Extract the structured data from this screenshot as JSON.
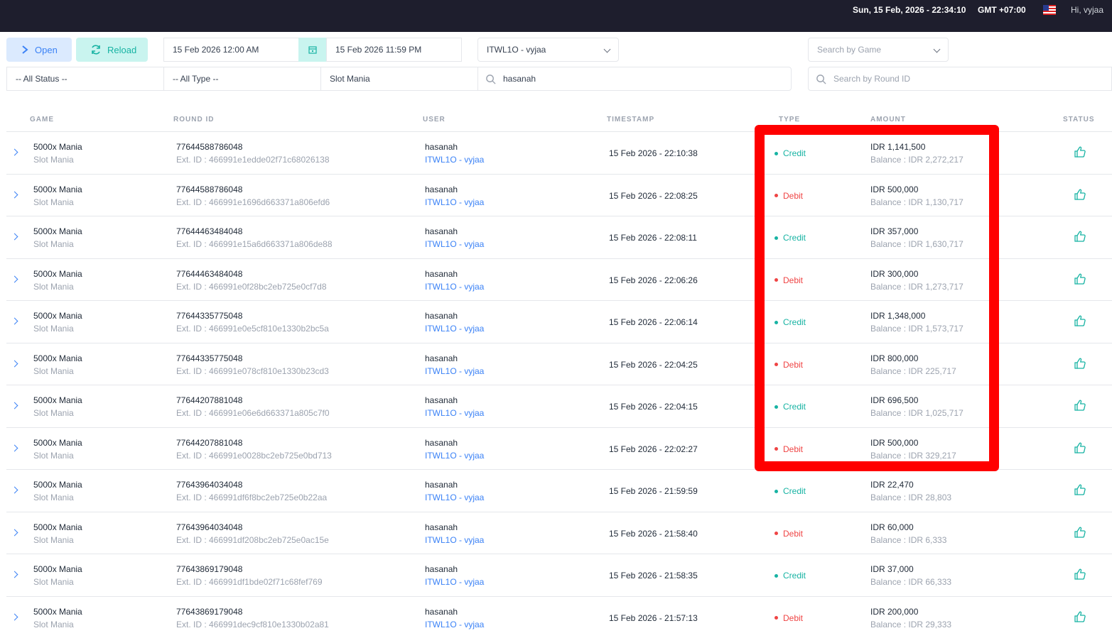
{
  "topbar": {
    "datetime": "Sun, 15 Feb, 2026 - 22:34:10",
    "timezone": "GMT +07:00",
    "greeting": "Hi, vyjaa"
  },
  "filters": {
    "open_label": "Open",
    "reload_label": "Reload",
    "date_from": "15 Feb 2026 12:00 AM",
    "date_to": "15 Feb 2026 11:59 PM",
    "agent": "ITWL1O - vyjaa",
    "game_placeholder": "Search by Game",
    "status": "-- All Status --",
    "type": "-- All Type --",
    "provider": "Slot Mania",
    "user_search": "hasanah",
    "round_placeholder": "Search by Round ID"
  },
  "table": {
    "headers": {
      "game": "GAME",
      "round_id": "ROUND ID",
      "user": "USER",
      "timestamp": "TIMESTAMP",
      "type": "TYPE",
      "amount": "AMOUNT",
      "status": "STATUS"
    },
    "rows": [
      {
        "game": "5000x Mania",
        "provider": "Slot Mania",
        "round_id": "77644588786048",
        "ext_id": "Ext. ID : 466991e1edde02f71c68026138",
        "user": "hasanah",
        "agent": "ITWL1O - vyjaa",
        "timestamp": "15 Feb 2026 - 22:10:38",
        "type": "Credit",
        "amount": "IDR 1,141,500",
        "balance": "Balance : IDR 2,272,217"
      },
      {
        "game": "5000x Mania",
        "provider": "Slot Mania",
        "round_id": "77644588786048",
        "ext_id": "Ext. ID : 466991e1696d663371a806efd6",
        "user": "hasanah",
        "agent": "ITWL1O - vyjaa",
        "timestamp": "15 Feb 2026 - 22:08:25",
        "type": "Debit",
        "amount": "IDR 500,000",
        "balance": "Balance : IDR 1,130,717"
      },
      {
        "game": "5000x Mania",
        "provider": "Slot Mania",
        "round_id": "77644463484048",
        "ext_id": "Ext. ID : 466991e15a6d663371a806de88",
        "user": "hasanah",
        "agent": "ITWL1O - vyjaa",
        "timestamp": "15 Feb 2026 - 22:08:11",
        "type": "Credit",
        "amount": "IDR 357,000",
        "balance": "Balance : IDR 1,630,717"
      },
      {
        "game": "5000x Mania",
        "provider": "Slot Mania",
        "round_id": "77644463484048",
        "ext_id": "Ext. ID : 466991e0f28bc2eb725e0cf7d8",
        "user": "hasanah",
        "agent": "ITWL1O - vyjaa",
        "timestamp": "15 Feb 2026 - 22:06:26",
        "type": "Debit",
        "amount": "IDR 300,000",
        "balance": "Balance : IDR 1,273,717"
      },
      {
        "game": "5000x Mania",
        "provider": "Slot Mania",
        "round_id": "77644335775048",
        "ext_id": "Ext. ID : 466991e0e5cf810e1330b2bc5a",
        "user": "hasanah",
        "agent": "ITWL1O - vyjaa",
        "timestamp": "15 Feb 2026 - 22:06:14",
        "type": "Credit",
        "amount": "IDR 1,348,000",
        "balance": "Balance : IDR 1,573,717"
      },
      {
        "game": "5000x Mania",
        "provider": "Slot Mania",
        "round_id": "77644335775048",
        "ext_id": "Ext. ID : 466991e078cf810e1330b23cd3",
        "user": "hasanah",
        "agent": "ITWL1O - vyjaa",
        "timestamp": "15 Feb 2026 - 22:04:25",
        "type": "Debit",
        "amount": "IDR 800,000",
        "balance": "Balance : IDR 225,717"
      },
      {
        "game": "5000x Mania",
        "provider": "Slot Mania",
        "round_id": "77644207881048",
        "ext_id": "Ext. ID : 466991e06e6d663371a805c7f0",
        "user": "hasanah",
        "agent": "ITWL1O - vyjaa",
        "timestamp": "15 Feb 2026 - 22:04:15",
        "type": "Credit",
        "amount": "IDR 696,500",
        "balance": "Balance : IDR 1,025,717"
      },
      {
        "game": "5000x Mania",
        "provider": "Slot Mania",
        "round_id": "77644207881048",
        "ext_id": "Ext. ID : 466991e0028bc2eb725e0bd713",
        "user": "hasanah",
        "agent": "ITWL1O - vyjaa",
        "timestamp": "15 Feb 2026 - 22:02:27",
        "type": "Debit",
        "amount": "IDR 500,000",
        "balance": "Balance : IDR 329,217"
      },
      {
        "game": "5000x Mania",
        "provider": "Slot Mania",
        "round_id": "77643964034048",
        "ext_id": "Ext. ID : 466991df6f8bc2eb725e0b22aa",
        "user": "hasanah",
        "agent": "ITWL1O - vyjaa",
        "timestamp": "15 Feb 2026 - 21:59:59",
        "type": "Credit",
        "amount": "IDR 22,470",
        "balance": "Balance : IDR 28,803"
      },
      {
        "game": "5000x Mania",
        "provider": "Slot Mania",
        "round_id": "77643964034048",
        "ext_id": "Ext. ID : 466991df208bc2eb725e0ac15e",
        "user": "hasanah",
        "agent": "ITWL1O - vyjaa",
        "timestamp": "15 Feb 2026 - 21:58:40",
        "type": "Debit",
        "amount": "IDR 60,000",
        "balance": "Balance : IDR 6,333"
      },
      {
        "game": "5000x Mania",
        "provider": "Slot Mania",
        "round_id": "77643869179048",
        "ext_id": "Ext. ID : 466991df1bde02f71c68fef769",
        "user": "hasanah",
        "agent": "ITWL1O - vyjaa",
        "timestamp": "15 Feb 2026 - 21:58:35",
        "type": "Credit",
        "amount": "IDR 37,000",
        "balance": "Balance : IDR 66,333"
      },
      {
        "game": "5000x Mania",
        "provider": "Slot Mania",
        "round_id": "77643869179048",
        "ext_id": "Ext. ID : 466991dec9cf810e1330b02a81",
        "user": "hasanah",
        "agent": "ITWL1O - vyjaa",
        "timestamp": "15 Feb 2026 - 21:57:13",
        "type": "Debit",
        "amount": "IDR 200,000",
        "balance": "Balance : IDR 29,333"
      }
    ]
  },
  "colors": {
    "credit": "#17b3a3",
    "debit": "#ef4444",
    "accent": "#3b82f6",
    "highlight": "#ff0000"
  }
}
